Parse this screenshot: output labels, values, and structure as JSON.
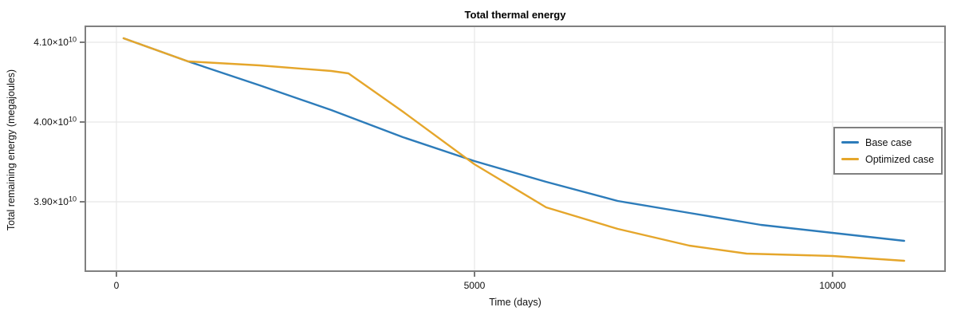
{
  "chart_data": {
    "type": "line",
    "title": "Total thermal energy",
    "xlabel": "Time (days)",
    "ylabel": "Total remaining energy (megajoules)",
    "xlim": [
      -434,
      11570
    ],
    "ylim": [
      38130000000.0,
      41200000000.0
    ],
    "grid": true,
    "legend_position": "right",
    "units": "megajoules",
    "x_ticks": [
      {
        "value": 0,
        "label": "0"
      },
      {
        "value": 5000,
        "label": "5000"
      },
      {
        "value": 10000,
        "label": "10000"
      }
    ],
    "y_ticks": [
      {
        "value": 41000000000.0,
        "base": "4.10×10",
        "exp": "10"
      },
      {
        "value": 40000000000.0,
        "base": "4.00×10",
        "exp": "10"
      },
      {
        "value": 39000000000.0,
        "base": "3.90×10",
        "exp": "10"
      }
    ],
    "series": [
      {
        "name": "Base case",
        "color": "#2d7cba",
        "x": [
          100,
          1000,
          2000,
          3000,
          4000,
          5000,
          6000,
          7000,
          8000,
          9000,
          10000,
          11000
        ],
        "y": [
          41050000000.0,
          40760000000.0,
          40460000000.0,
          40150000000.0,
          39810000000.0,
          39510000000.0,
          39250000000.0,
          39010000000.0,
          38860000000.0,
          38710000000.0,
          38610000000.0,
          38510000000.0
        ]
      },
      {
        "name": "Optimized case",
        "color": "#e5a62b",
        "x": [
          100,
          1000,
          2000,
          3000,
          3240,
          4000,
          5000,
          6000,
          7000,
          8000,
          8800,
          10000,
          11000
        ],
        "y": [
          41050000000.0,
          40760000000.0,
          40710000000.0,
          40640000000.0,
          40610000000.0,
          40130000000.0,
          39470000000.0,
          38930000000.0,
          38660000000.0,
          38450000000.0,
          38350000000.0,
          38320000000.0,
          38260000000.0
        ]
      }
    ]
  },
  "style": {
    "spine_color": "#808080",
    "grid_color": "#e7e7e7",
    "tick_color": "#4d4d4d",
    "text_color": "#111111",
    "background": "#ffffff"
  }
}
